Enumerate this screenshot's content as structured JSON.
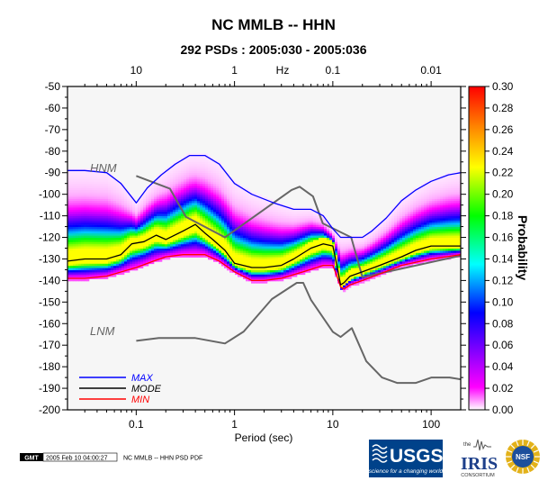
{
  "title": "NC MMLB -- HHN",
  "subtitle": "292 PSDs : 2005:030 - 2005:036",
  "chart_data": {
    "type": "heatmap",
    "title": "NC MMLB -- HHN",
    "subtitle": "292 PSDs : 2005:030 - 2005:036",
    "xlabel": "Period (sec)",
    "xscale": "log",
    "xlim": [
      0.02,
      200
    ],
    "x_ticks": [
      0.1,
      1,
      10,
      100
    ],
    "x_tick_labels": [
      "0.1",
      "1",
      "10",
      "100"
    ],
    "top_axis_label": "Hz",
    "top_ticks": [
      10,
      1,
      0.1,
      0.01
    ],
    "top_tick_labels": [
      "10",
      "1",
      "0.1",
      "0.01"
    ],
    "ylim": [
      -200,
      -50
    ],
    "y_ticks": [
      -50,
      -60,
      -70,
      -80,
      -90,
      -100,
      -110,
      -120,
      -130,
      -140,
      -150,
      -160,
      -170,
      -180,
      -190,
      -200
    ],
    "y_tick_labels": [
      "-50",
      "-60",
      "-70",
      "-80",
      "-90",
      "-100",
      "-110",
      "-120",
      "-130",
      "-140",
      "-150",
      "-160",
      "-170",
      "-180",
      "-190",
      "-200"
    ],
    "colorbar": {
      "label": "Probability",
      "min": 0.0,
      "max": 0.3,
      "ticks": [
        0.3,
        0.28,
        0.26,
        0.24,
        0.22,
        0.2,
        0.18,
        0.16,
        0.14,
        0.12,
        0.1,
        0.08,
        0.06,
        0.04,
        0.02,
        0.0
      ],
      "tick_labels": [
        "0.30",
        "0.28",
        "0.26",
        "0.24",
        "0.22",
        "0.20",
        "0.18",
        "0.16",
        "0.14",
        "0.12",
        "0.10",
        "0.08",
        "0.06",
        "0.04",
        "0.02",
        "0.00"
      ],
      "stops": [
        "#ffffff",
        "#ff00ff",
        "#0000ff",
        "#00ffff",
        "#00ff00",
        "#ffff00",
        "#ff8000",
        "#ff0000"
      ]
    },
    "reference_models": [
      {
        "name": "HNM",
        "color": "#666666",
        "x": [
          0.1,
          0.22,
          0.32,
          0.8,
          3.8,
          4.6,
          6.3,
          7.9,
          15.4,
          20,
          354.8
        ],
        "y": [
          -91.5,
          -97.4,
          -110.5,
          -120,
          -98,
          -96.5,
          -101,
          -113.5,
          -120,
          -138.5,
          -126
        ]
      },
      {
        "name": "LNM",
        "color": "#666666",
        "x": [
          0.1,
          0.17,
          0.4,
          0.8,
          1.24,
          2.4,
          4.3,
          5,
          6,
          10,
          12,
          15.6,
          21.9,
          31.6,
          45,
          70,
          101,
          154,
          328
        ],
        "y": [
          -168,
          -166.7,
          -166.7,
          -169.2,
          -163.7,
          -148.6,
          -141.1,
          -141.1,
          -149,
          -163.8,
          -166.2,
          -162.1,
          -177.5,
          -185,
          -187.5,
          -187.5,
          -185,
          -185,
          -187.5
        ]
      }
    ],
    "series": [
      {
        "name": "MAX",
        "color": "#0000ff",
        "x": [
          0.02,
          0.03,
          0.05,
          0.07,
          0.1,
          0.13,
          0.18,
          0.25,
          0.35,
          0.5,
          0.7,
          1.0,
          1.5,
          2.5,
          4,
          6,
          8,
          10,
          12,
          15,
          20,
          25,
          35,
          50,
          70,
          100,
          150,
          200
        ],
        "y": [
          -89,
          -89,
          -90,
          -95,
          -104,
          -97,
          -91,
          -86,
          -82,
          -82,
          -86,
          -95,
          -100,
          -104,
          -107,
          -107,
          -110,
          -116,
          -120,
          -120,
          -120,
          -117,
          -111,
          -103,
          -98,
          -94,
          -91,
          -90
        ]
      },
      {
        "name": "MODE",
        "color": "#000000",
        "x": [
          0.02,
          0.03,
          0.05,
          0.07,
          0.09,
          0.12,
          0.16,
          0.2,
          0.3,
          0.4,
          0.5,
          0.6,
          0.8,
          1,
          1.5,
          2,
          3,
          4,
          6,
          8,
          10,
          11,
          12,
          13,
          15,
          20,
          30,
          50,
          70,
          100,
          150,
          200
        ],
        "y": [
          -131,
          -130,
          -130,
          -128,
          -123,
          -122,
          -119,
          -121,
          -117,
          -114,
          -118,
          -121,
          -126,
          -132,
          -134,
          -134,
          -133,
          -130,
          -125,
          -123,
          -124,
          -133,
          -142,
          -141,
          -138,
          -136,
          -133,
          -129,
          -126,
          -124,
          -124,
          -124
        ]
      },
      {
        "name": "MIN",
        "color": "#ff0000",
        "x": [
          0.02,
          0.03,
          0.05,
          0.1,
          0.15,
          0.2,
          0.3,
          0.5,
          0.7,
          1,
          1.5,
          2,
          3,
          5,
          8,
          10,
          11,
          12,
          13,
          15,
          20,
          30,
          50,
          100,
          200
        ],
        "y": [
          -139,
          -139,
          -138,
          -134,
          -131,
          -129,
          -128,
          -128,
          -131,
          -136,
          -140,
          -140,
          -139,
          -136,
          -133,
          -133,
          -138,
          -143,
          -144,
          -142,
          -140,
          -137,
          -133,
          -130,
          -128
        ]
      }
    ]
  },
  "legend": {
    "items": [
      {
        "label": "MAX",
        "color": "#0000ff"
      },
      {
        "label": "MODE",
        "color": "#000000"
      },
      {
        "label": "MIN",
        "color": "#ff0000"
      }
    ],
    "position": "bottom-left"
  },
  "footer": {
    "gmt_badge": "GMT",
    "timestamp": "2005 Feb 10 04:00:27",
    "caption": "NC MMLB -- HHN PSD PDF"
  },
  "logos": {
    "usgs": {
      "text": "USGS",
      "tagline": "science for a changing world"
    },
    "iris": {
      "top": "the",
      "text": "IRIS",
      "sub": "CONSORTIUM"
    },
    "nsf": {
      "text": "NSF"
    }
  }
}
